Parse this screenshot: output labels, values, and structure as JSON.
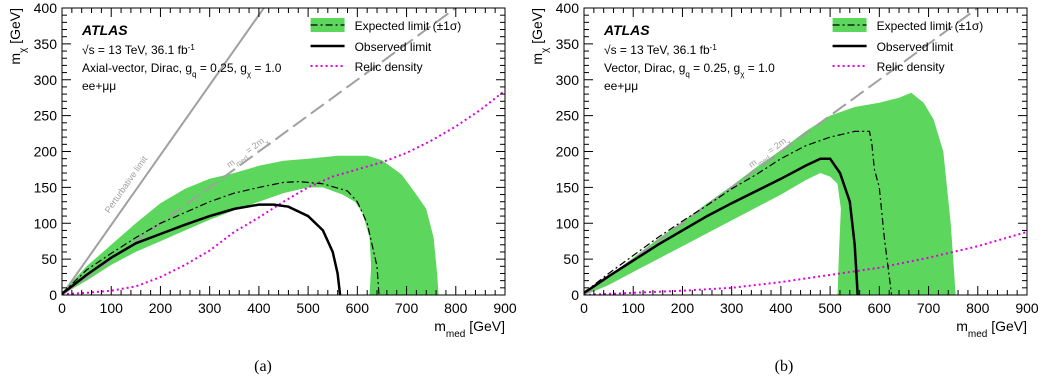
{
  "chart_data": [
    {
      "type": "line",
      "panel_caption": "(a)",
      "experiment": "ATLAS",
      "energy_text": "= 13 TeV, 36.1 fb",
      "energy_sup": "-1",
      "model_text": "Axial-vector, Dirac, g",
      "model_q": "q",
      "model_mid": " = 0.25, g",
      "model_chi": "χ",
      "model_end": " = 1.0",
      "channel": "ee+μμ",
      "xlabel": "m",
      "xlabel_sub": "med",
      "xlabel_unit": " [GeV]",
      "ylabel": "m",
      "ylabel_sub": "χ",
      "ylabel_unit": " [GeV]",
      "xlim": [
        0,
        900
      ],
      "ylim": [
        0,
        400
      ],
      "x_ticks": [
        "0",
        "100",
        "200",
        "300",
        "400",
        "500",
        "600",
        "700",
        "800",
        "900"
      ],
      "y_ticks": [
        "0",
        "50",
        "100",
        "150",
        "200",
        "250",
        "300",
        "350",
        "400"
      ],
      "legend": {
        "expected": "Expected limit (±1σ)",
        "observed": "Observed limit",
        "relic": "Relic density"
      },
      "diag_label": "m",
      "diag_label_sub": "med",
      "diag_label_mid": " = 2m",
      "diag_label_sub2": "χ",
      "perturbative_label": "Perturbative limit",
      "perturbative_line": [
        [
          0,
          0
        ],
        [
          410,
          400
        ]
      ],
      "diagonal_line": [
        [
          0,
          0
        ],
        [
          800,
          400
        ]
      ],
      "colors": {
        "band": "#5cd65c",
        "relic": "#e000e0",
        "observed": "#000000",
        "diag": "#a0a0a0"
      },
      "band": [
        [
          0,
          0
        ],
        [
          20,
          18
        ],
        [
          50,
          40
        ],
        [
          100,
          70
        ],
        [
          150,
          100
        ],
        [
          200,
          128
        ],
        [
          250,
          148
        ],
        [
          300,
          162
        ],
        [
          350,
          170
        ],
        [
          400,
          180
        ],
        [
          450,
          187
        ],
        [
          500,
          190
        ],
        [
          560,
          194
        ],
        [
          620,
          194
        ],
        [
          650,
          188
        ],
        [
          690,
          168
        ],
        [
          720,
          140
        ],
        [
          740,
          120
        ],
        [
          755,
          80
        ],
        [
          762,
          30
        ],
        [
          765,
          0
        ],
        [
          625,
          0
        ],
        [
          628,
          40
        ],
        [
          625,
          80
        ],
        [
          610,
          115
        ],
        [
          595,
          130
        ],
        [
          570,
          140
        ],
        [
          530,
          150
        ],
        [
          500,
          150
        ],
        [
          450,
          142
        ],
        [
          400,
          130
        ],
        [
          350,
          118
        ],
        [
          300,
          105
        ],
        [
          250,
          90
        ],
        [
          200,
          75
        ],
        [
          150,
          60
        ],
        [
          100,
          42
        ],
        [
          50,
          20
        ],
        [
          20,
          8
        ],
        [
          0,
          0
        ]
      ],
      "expected": [
        [
          0,
          2
        ],
        [
          20,
          15
        ],
        [
          50,
          35
        ],
        [
          100,
          58
        ],
        [
          150,
          80
        ],
        [
          200,
          100
        ],
        [
          250,
          115
        ],
        [
          300,
          130
        ],
        [
          350,
          142
        ],
        [
          400,
          150
        ],
        [
          450,
          157
        ],
        [
          480,
          158
        ],
        [
          530,
          155
        ],
        [
          580,
          145
        ],
        [
          600,
          130
        ],
        [
          620,
          100
        ],
        [
          630,
          70
        ],
        [
          640,
          40
        ],
        [
          644,
          0
        ]
      ],
      "observed": [
        [
          0,
          2
        ],
        [
          20,
          12
        ],
        [
          50,
          28
        ],
        [
          100,
          52
        ],
        [
          150,
          72
        ],
        [
          200,
          85
        ],
        [
          250,
          98
        ],
        [
          300,
          110
        ],
        [
          350,
          120
        ],
        [
          400,
          126
        ],
        [
          430,
          126
        ],
        [
          460,
          123
        ],
        [
          500,
          110
        ],
        [
          530,
          90
        ],
        [
          550,
          60
        ],
        [
          560,
          30
        ],
        [
          565,
          0
        ]
      ],
      "relic": [
        [
          0,
          1
        ],
        [
          50,
          3
        ],
        [
          100,
          6
        ],
        [
          150,
          12
        ],
        [
          200,
          25
        ],
        [
          250,
          42
        ],
        [
          300,
          62
        ],
        [
          350,
          88
        ],
        [
          400,
          108
        ],
        [
          450,
          130
        ],
        [
          500,
          150
        ],
        [
          550,
          165
        ],
        [
          600,
          175
        ],
        [
          650,
          185
        ],
        [
          700,
          198
        ],
        [
          750,
          215
        ],
        [
          800,
          235
        ],
        [
          850,
          258
        ],
        [
          900,
          285
        ]
      ]
    },
    {
      "type": "line",
      "panel_caption": "(b)",
      "experiment": "ATLAS",
      "energy_text": "= 13 TeV, 36.1 fb",
      "energy_sup": "-1",
      "model_text": "Vector, Dirac, g",
      "model_q": "q",
      "model_mid": " = 0.25, g",
      "model_chi": "χ",
      "model_end": " = 1.0",
      "channel": "ee+μμ",
      "xlabel": "m",
      "xlabel_sub": "med",
      "xlabel_unit": " [GeV]",
      "ylabel": "m",
      "ylabel_sub": "χ",
      "ylabel_unit": " [GeV]",
      "xlim": [
        0,
        900
      ],
      "ylim": [
        0,
        400
      ],
      "x_ticks": [
        "0",
        "100",
        "200",
        "300",
        "400",
        "500",
        "600",
        "700",
        "800",
        "900"
      ],
      "y_ticks": [
        "0",
        "50",
        "100",
        "150",
        "200",
        "250",
        "300",
        "350",
        "400"
      ],
      "legend": {
        "expected": "Expected limit (±1σ)",
        "observed": "Observed limit",
        "relic": "Relic density"
      },
      "diag_label": "m",
      "diag_label_sub": "med",
      "diag_label_mid": " = 2m",
      "diag_label_sub2": "χ",
      "perturbative_label": "",
      "perturbative_line": [],
      "diagonal_line": [
        [
          0,
          0
        ],
        [
          800,
          400
        ]
      ],
      "colors": {
        "band": "#5cd65c",
        "relic": "#e000e0",
        "observed": "#000000",
        "diag": "#a0a0a0"
      },
      "band": [
        [
          0,
          0
        ],
        [
          20,
          12
        ],
        [
          50,
          26
        ],
        [
          100,
          52
        ],
        [
          150,
          78
        ],
        [
          200,
          102
        ],
        [
          250,
          128
        ],
        [
          300,
          152
        ],
        [
          350,
          178
        ],
        [
          400,
          202
        ],
        [
          450,
          228
        ],
        [
          500,
          250
        ],
        [
          550,
          262
        ],
        [
          600,
          268
        ],
        [
          640,
          275
        ],
        [
          665,
          282
        ],
        [
          690,
          268
        ],
        [
          710,
          245
        ],
        [
          730,
          200
        ],
        [
          745,
          100
        ],
        [
          752,
          30
        ],
        [
          755,
          0
        ],
        [
          515,
          0
        ],
        [
          518,
          60
        ],
        [
          522,
          120
        ],
        [
          515,
          155
        ],
        [
          500,
          165
        ],
        [
          480,
          170
        ],
        [
          450,
          160
        ],
        [
          400,
          140
        ],
        [
          350,
          122
        ],
        [
          300,
          104
        ],
        [
          250,
          86
        ],
        [
          200,
          68
        ],
        [
          150,
          50
        ],
        [
          100,
          32
        ],
        [
          50,
          14
        ],
        [
          20,
          5
        ],
        [
          0,
          0
        ]
      ],
      "expected": [
        [
          0,
          3
        ],
        [
          20,
          14
        ],
        [
          50,
          30
        ],
        [
          100,
          55
        ],
        [
          150,
          80
        ],
        [
          200,
          103
        ],
        [
          250,
          125
        ],
        [
          300,
          148
        ],
        [
          350,
          168
        ],
        [
          400,
          190
        ],
        [
          450,
          208
        ],
        [
          500,
          220
        ],
        [
          550,
          228
        ],
        [
          580,
          228
        ],
        [
          585,
          210
        ],
        [
          590,
          175
        ],
        [
          600,
          150
        ],
        [
          610,
          80
        ],
        [
          625,
          0
        ]
      ],
      "observed": [
        [
          0,
          3
        ],
        [
          20,
          12
        ],
        [
          50,
          26
        ],
        [
          100,
          48
        ],
        [
          150,
          70
        ],
        [
          200,
          90
        ],
        [
          250,
          110
        ],
        [
          300,
          128
        ],
        [
          350,
          145
        ],
        [
          400,
          162
        ],
        [
          450,
          180
        ],
        [
          480,
          190
        ],
        [
          500,
          190
        ],
        [
          520,
          170
        ],
        [
          540,
          130
        ],
        [
          550,
          70
        ],
        [
          556,
          0
        ]
      ],
      "relic": [
        [
          0,
          0
        ],
        [
          100,
          3
        ],
        [
          200,
          6
        ],
        [
          300,
          10
        ],
        [
          400,
          18
        ],
        [
          500,
          28
        ],
        [
          600,
          38
        ],
        [
          700,
          52
        ],
        [
          800,
          68
        ],
        [
          900,
          88
        ]
      ]
    }
  ]
}
